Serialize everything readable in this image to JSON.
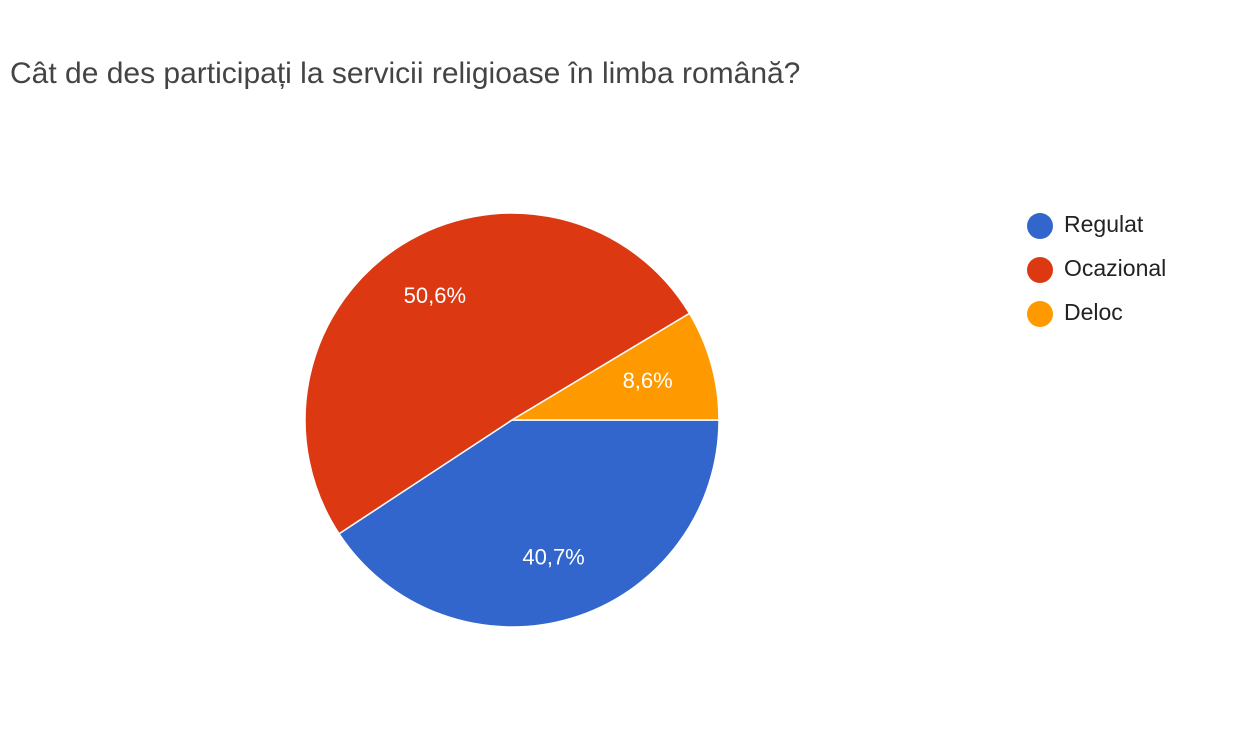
{
  "chart_data": {
    "type": "pie",
    "title": "Cât de des participați la servicii religioase în limba română?",
    "categories": [
      "Regulat",
      "Ocazional",
      "Deloc"
    ],
    "values": [
      40.7,
      50.6,
      8.6
    ],
    "value_labels": [
      "40,7%",
      "50,6%",
      "8,6%"
    ],
    "colors": [
      "#3366cc",
      "#dc3912",
      "#ff9900"
    ],
    "legend": "right"
  }
}
